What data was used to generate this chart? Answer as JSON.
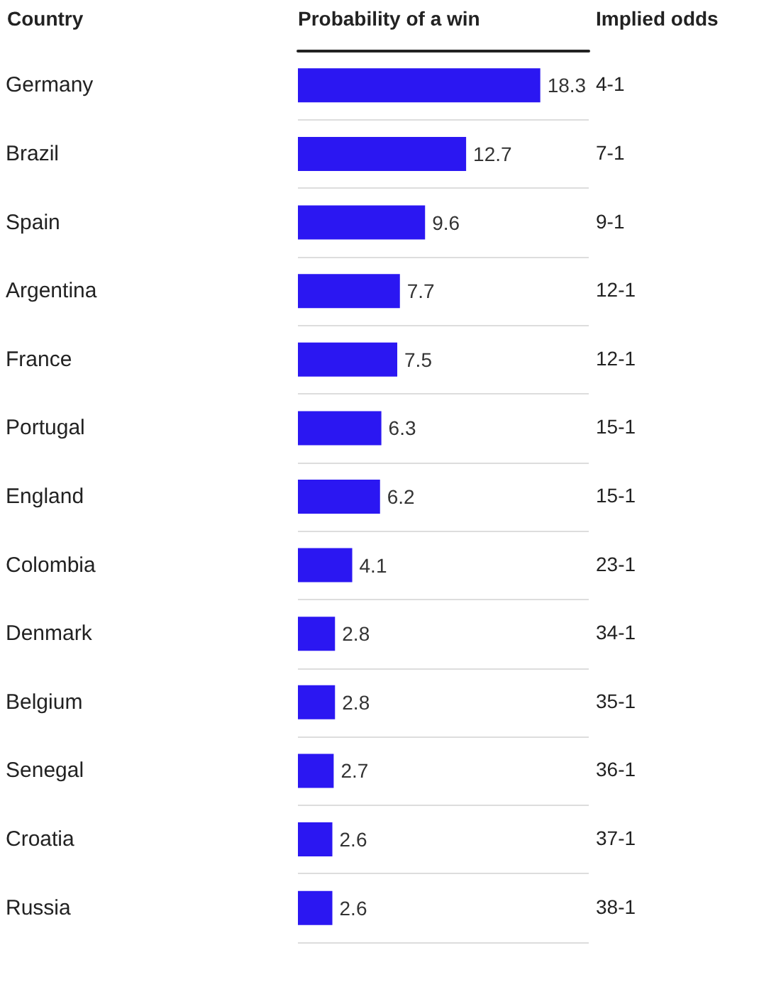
{
  "chart_data": {
    "type": "bar",
    "orientation": "horizontal",
    "xlabel": "Probability of a win",
    "ylabel": "Country",
    "y2label": "Implied odds",
    "categories": [
      "Germany",
      "Brazil",
      "Spain",
      "Argentina",
      "France",
      "Portugal",
      "England",
      "Colombia",
      "Denmark",
      "Belgium",
      "Senegal",
      "Croatia",
      "Russia"
    ],
    "values": [
      18.3,
      12.7,
      9.6,
      7.7,
      7.5,
      6.3,
      6.2,
      4.1,
      2.8,
      2.8,
      2.7,
      2.6,
      2.6
    ],
    "color": "#2b17f2",
    "data_labels": true,
    "grid": "y",
    "annotations": [
      "4-1",
      "7-1",
      "9-1",
      "12-1",
      "12-1",
      "15-1",
      "15-1",
      "23-1",
      "34-1",
      "35-1",
      "36-1",
      "37-1",
      "38-1"
    ]
  }
}
